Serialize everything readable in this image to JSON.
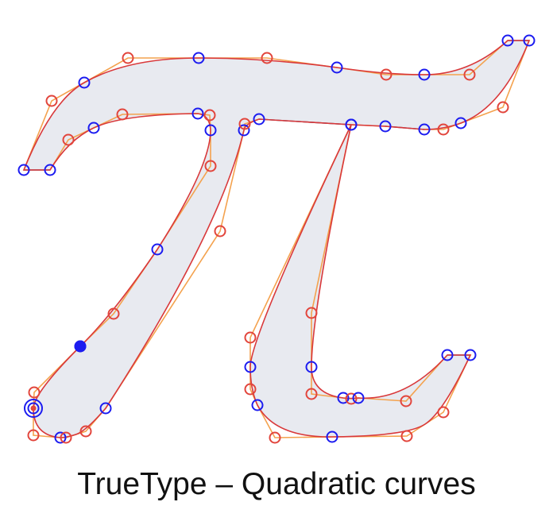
{
  "caption": "TrueType – Quadratic curves",
  "colors": {
    "fill": "#e8eaf0",
    "outline": "#d9383a",
    "control_polygon": "#f4a24e",
    "straight_segment": "#4a6fbf",
    "on_curve_point": "#1c1cf0",
    "off_curve_point": "#e2453c",
    "start_point": "#1c1cf0"
  },
  "legend_semantics": {
    "on_curve_point": "blue circle",
    "off_curve_point": "red circle",
    "start_point": "filled blue dot"
  }
}
